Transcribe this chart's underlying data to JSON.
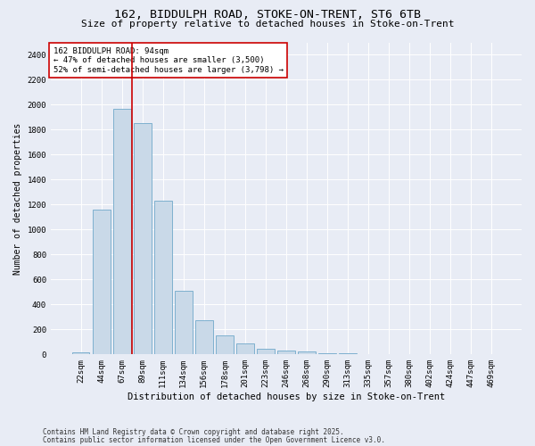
{
  "title1": "162, BIDDULPH ROAD, STOKE-ON-TRENT, ST6 6TB",
  "title2": "Size of property relative to detached houses in Stoke-on-Trent",
  "xlabel": "Distribution of detached houses by size in Stoke-on-Trent",
  "ylabel": "Number of detached properties",
  "categories": [
    "22sqm",
    "44sqm",
    "67sqm",
    "89sqm",
    "111sqm",
    "134sqm",
    "156sqm",
    "178sqm",
    "201sqm",
    "223sqm",
    "246sqm",
    "268sqm",
    "290sqm",
    "313sqm",
    "335sqm",
    "357sqm",
    "380sqm",
    "402sqm",
    "424sqm",
    "447sqm",
    "469sqm"
  ],
  "values": [
    20,
    1160,
    1970,
    1850,
    1230,
    510,
    275,
    155,
    85,
    45,
    28,
    25,
    10,
    8,
    5,
    3,
    3,
    2,
    2,
    1,
    1
  ],
  "bar_color": "#c9d9e8",
  "bar_edge_color": "#6fa8c9",
  "vline_x_index": 3,
  "vline_color": "#cc0000",
  "annotation_text": "162 BIDDULPH ROAD: 94sqm\n← 47% of detached houses are smaller (3,500)\n52% of semi-detached houses are larger (3,798) →",
  "annotation_box_color": "#ffffff",
  "annotation_box_edge": "#cc0000",
  "ylim": [
    0,
    2500
  ],
  "yticks": [
    0,
    200,
    400,
    600,
    800,
    1000,
    1200,
    1400,
    1600,
    1800,
    2000,
    2200,
    2400
  ],
  "bg_color": "#e8ecf5",
  "plot_bg_color": "#e8ecf5",
  "footer_line1": "Contains HM Land Registry data © Crown copyright and database right 2025.",
  "footer_line2": "Contains public sector information licensed under the Open Government Licence v3.0.",
  "title1_fontsize": 9.5,
  "title2_fontsize": 8,
  "xlabel_fontsize": 7.5,
  "ylabel_fontsize": 7,
  "tick_fontsize": 6.5,
  "annotation_fontsize": 6.5,
  "footer_fontsize": 5.5
}
